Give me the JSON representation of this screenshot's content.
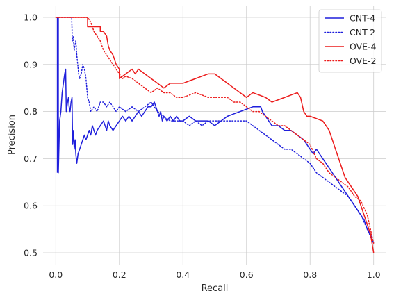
{
  "chart_data": {
    "type": "line",
    "title": "",
    "xlabel": "Recall",
    "ylabel": "Precision",
    "xlim": [
      -0.04,
      1.04
    ],
    "ylim": [
      0.475,
      1.025
    ],
    "xticks": [
      0.0,
      0.2,
      0.4,
      0.6,
      0.8,
      1.0
    ],
    "xtick_labels": [
      "0.0",
      "0.2",
      "0.4",
      "0.6",
      "0.8",
      "1.0"
    ],
    "yticks": [
      0.5,
      0.6,
      0.7,
      0.8,
      0.9,
      1.0
    ],
    "ytick_labels": [
      "0.5",
      "0.6",
      "0.7",
      "0.8",
      "0.9",
      "1.0"
    ],
    "grid": true,
    "legend_position": "top-right",
    "series": [
      {
        "name": "CNT-4",
        "color": "#1f1fdc",
        "style": "solid",
        "points": [
          [
            0.005,
            0.67
          ],
          [
            0.005,
            1.0
          ],
          [
            0.008,
            1.0
          ],
          [
            0.008,
            0.67
          ],
          [
            0.012,
            0.78
          ],
          [
            0.016,
            0.8
          ],
          [
            0.02,
            0.84
          ],
          [
            0.024,
            0.86
          ],
          [
            0.028,
            0.88
          ],
          [
            0.031,
            0.89
          ],
          [
            0.033,
            0.8
          ],
          [
            0.037,
            0.82
          ],
          [
            0.04,
            0.83
          ],
          [
            0.042,
            0.81
          ],
          [
            0.045,
            0.8
          ],
          [
            0.048,
            0.82
          ],
          [
            0.051,
            0.83
          ],
          [
            0.053,
            0.73
          ],
          [
            0.056,
            0.76
          ],
          [
            0.058,
            0.72
          ],
          [
            0.061,
            0.74
          ],
          [
            0.063,
            0.71
          ],
          [
            0.066,
            0.69
          ],
          [
            0.07,
            0.71
          ],
          [
            0.075,
            0.72
          ],
          [
            0.08,
            0.73
          ],
          [
            0.085,
            0.74
          ],
          [
            0.09,
            0.75
          ],
          [
            0.095,
            0.74
          ],
          [
            0.1,
            0.75
          ],
          [
            0.105,
            0.76
          ],
          [
            0.11,
            0.75
          ],
          [
            0.115,
            0.77
          ],
          [
            0.12,
            0.76
          ],
          [
            0.125,
            0.75
          ],
          [
            0.13,
            0.76
          ],
          [
            0.14,
            0.77
          ],
          [
            0.15,
            0.78
          ],
          [
            0.155,
            0.77
          ],
          [
            0.16,
            0.76
          ],
          [
            0.165,
            0.78
          ],
          [
            0.17,
            0.77
          ],
          [
            0.18,
            0.76
          ],
          [
            0.19,
            0.77
          ],
          [
            0.2,
            0.78
          ],
          [
            0.21,
            0.79
          ],
          [
            0.22,
            0.78
          ],
          [
            0.23,
            0.79
          ],
          [
            0.24,
            0.78
          ],
          [
            0.25,
            0.79
          ],
          [
            0.26,
            0.8
          ],
          [
            0.27,
            0.79
          ],
          [
            0.28,
            0.8
          ],
          [
            0.29,
            0.81
          ],
          [
            0.3,
            0.81
          ],
          [
            0.31,
            0.82
          ],
          [
            0.315,
            0.81
          ],
          [
            0.32,
            0.8
          ],
          [
            0.325,
            0.79
          ],
          [
            0.33,
            0.8
          ],
          [
            0.335,
            0.78
          ],
          [
            0.34,
            0.79
          ],
          [
            0.35,
            0.78
          ],
          [
            0.36,
            0.79
          ],
          [
            0.37,
            0.78
          ],
          [
            0.38,
            0.79
          ],
          [
            0.39,
            0.78
          ],
          [
            0.4,
            0.78
          ],
          [
            0.42,
            0.79
          ],
          [
            0.44,
            0.78
          ],
          [
            0.46,
            0.78
          ],
          [
            0.48,
            0.78
          ],
          [
            0.5,
            0.77
          ],
          [
            0.52,
            0.78
          ],
          [
            0.54,
            0.79
          ],
          [
            0.56,
            0.795
          ],
          [
            0.58,
            0.8
          ],
          [
            0.6,
            0.805
          ],
          [
            0.62,
            0.81
          ],
          [
            0.64,
            0.81
          ],
          [
            0.645,
            0.81
          ],
          [
            0.65,
            0.8
          ],
          [
            0.66,
            0.79
          ],
          [
            0.67,
            0.78
          ],
          [
            0.68,
            0.77
          ],
          [
            0.7,
            0.77
          ],
          [
            0.72,
            0.76
          ],
          [
            0.74,
            0.76
          ],
          [
            0.76,
            0.75
          ],
          [
            0.78,
            0.74
          ],
          [
            0.8,
            0.72
          ],
          [
            0.81,
            0.71
          ],
          [
            0.82,
            0.72
          ],
          [
            0.83,
            0.71
          ],
          [
            0.84,
            0.7
          ],
          [
            0.85,
            0.69
          ],
          [
            0.86,
            0.68
          ],
          [
            0.87,
            0.67
          ],
          [
            0.88,
            0.66
          ],
          [
            0.89,
            0.65
          ],
          [
            0.9,
            0.64
          ],
          [
            0.91,
            0.63
          ],
          [
            0.92,
            0.62
          ],
          [
            0.93,
            0.61
          ],
          [
            0.94,
            0.6
          ],
          [
            0.95,
            0.59
          ],
          [
            0.96,
            0.58
          ],
          [
            0.97,
            0.57
          ],
          [
            0.98,
            0.55
          ],
          [
            0.99,
            0.54
          ],
          [
            1.0,
            0.52
          ]
        ]
      },
      {
        "name": "CNT-2",
        "color": "#1f1fdc",
        "style": "dotted",
        "points": [
          [
            0.01,
            1.0
          ],
          [
            0.05,
            1.0
          ],
          [
            0.052,
            0.95
          ],
          [
            0.055,
            0.96
          ],
          [
            0.058,
            0.93
          ],
          [
            0.06,
            0.94
          ],
          [
            0.063,
            0.95
          ],
          [
            0.066,
            0.92
          ],
          [
            0.069,
            0.9
          ],
          [
            0.072,
            0.88
          ],
          [
            0.075,
            0.87
          ],
          [
            0.08,
            0.88
          ],
          [
            0.085,
            0.9
          ],
          [
            0.09,
            0.89
          ],
          [
            0.095,
            0.87
          ],
          [
            0.1,
            0.83
          ],
          [
            0.105,
            0.82
          ],
          [
            0.11,
            0.8
          ],
          [
            0.12,
            0.81
          ],
          [
            0.13,
            0.8
          ],
          [
            0.14,
            0.82
          ],
          [
            0.15,
            0.82
          ],
          [
            0.16,
            0.81
          ],
          [
            0.17,
            0.82
          ],
          [
            0.18,
            0.81
          ],
          [
            0.19,
            0.8
          ],
          [
            0.2,
            0.81
          ],
          [
            0.22,
            0.8
          ],
          [
            0.24,
            0.81
          ],
          [
            0.26,
            0.8
          ],
          [
            0.28,
            0.81
          ],
          [
            0.3,
            0.82
          ],
          [
            0.32,
            0.8
          ],
          [
            0.34,
            0.79
          ],
          [
            0.36,
            0.78
          ],
          [
            0.38,
            0.78
          ],
          [
            0.4,
            0.78
          ],
          [
            0.42,
            0.77
          ],
          [
            0.44,
            0.78
          ],
          [
            0.46,
            0.77
          ],
          [
            0.48,
            0.78
          ],
          [
            0.5,
            0.78
          ],
          [
            0.52,
            0.78
          ],
          [
            0.54,
            0.78
          ],
          [
            0.56,
            0.78
          ],
          [
            0.58,
            0.78
          ],
          [
            0.6,
            0.78
          ],
          [
            0.62,
            0.77
          ],
          [
            0.64,
            0.76
          ],
          [
            0.66,
            0.75
          ],
          [
            0.68,
            0.74
          ],
          [
            0.7,
            0.73
          ],
          [
            0.72,
            0.72
          ],
          [
            0.74,
            0.72
          ],
          [
            0.76,
            0.71
          ],
          [
            0.78,
            0.7
          ],
          [
            0.8,
            0.69
          ],
          [
            0.82,
            0.67
          ],
          [
            0.84,
            0.66
          ],
          [
            0.86,
            0.65
          ],
          [
            0.88,
            0.64
          ],
          [
            0.9,
            0.63
          ],
          [
            0.92,
            0.62
          ],
          [
            0.94,
            0.6
          ],
          [
            0.96,
            0.58
          ],
          [
            0.98,
            0.55
          ],
          [
            1.0,
            0.52
          ]
        ]
      },
      {
        "name": "OVE-4",
        "color": "#ec1c1c",
        "style": "solid",
        "points": [
          [
            0.0,
            1.0
          ],
          [
            0.1,
            1.0
          ],
          [
            0.1,
            0.98
          ],
          [
            0.14,
            0.98
          ],
          [
            0.14,
            0.97
          ],
          [
            0.15,
            0.97
          ],
          [
            0.16,
            0.96
          ],
          [
            0.165,
            0.94
          ],
          [
            0.17,
            0.93
          ],
          [
            0.18,
            0.92
          ],
          [
            0.19,
            0.9
          ],
          [
            0.2,
            0.89
          ],
          [
            0.2,
            0.87
          ],
          [
            0.22,
            0.88
          ],
          [
            0.24,
            0.89
          ],
          [
            0.25,
            0.88
          ],
          [
            0.26,
            0.89
          ],
          [
            0.28,
            0.88
          ],
          [
            0.3,
            0.87
          ],
          [
            0.32,
            0.86
          ],
          [
            0.34,
            0.85
          ],
          [
            0.36,
            0.86
          ],
          [
            0.38,
            0.86
          ],
          [
            0.4,
            0.86
          ],
          [
            0.42,
            0.865
          ],
          [
            0.44,
            0.87
          ],
          [
            0.46,
            0.875
          ],
          [
            0.48,
            0.88
          ],
          [
            0.5,
            0.88
          ],
          [
            0.52,
            0.87
          ],
          [
            0.54,
            0.86
          ],
          [
            0.56,
            0.85
          ],
          [
            0.58,
            0.84
          ],
          [
            0.6,
            0.83
          ],
          [
            0.62,
            0.84
          ],
          [
            0.64,
            0.835
          ],
          [
            0.66,
            0.83
          ],
          [
            0.68,
            0.82
          ],
          [
            0.7,
            0.825
          ],
          [
            0.72,
            0.83
          ],
          [
            0.74,
            0.835
          ],
          [
            0.76,
            0.84
          ],
          [
            0.77,
            0.83
          ],
          [
            0.78,
            0.8
          ],
          [
            0.79,
            0.79
          ],
          [
            0.8,
            0.79
          ],
          [
            0.82,
            0.785
          ],
          [
            0.84,
            0.78
          ],
          [
            0.85,
            0.77
          ],
          [
            0.86,
            0.76
          ],
          [
            0.87,
            0.74
          ],
          [
            0.88,
            0.72
          ],
          [
            0.89,
            0.7
          ],
          [
            0.9,
            0.68
          ],
          [
            0.91,
            0.66
          ],
          [
            0.92,
            0.65
          ],
          [
            0.93,
            0.64
          ],
          [
            0.94,
            0.63
          ],
          [
            0.95,
            0.62
          ],
          [
            0.96,
            0.6
          ],
          [
            0.97,
            0.58
          ],
          [
            0.98,
            0.56
          ],
          [
            0.99,
            0.54
          ],
          [
            1.0,
            0.5
          ]
        ]
      },
      {
        "name": "OVE-2",
        "color": "#ec1c1c",
        "style": "dotted",
        "points": [
          [
            0.0,
            1.0
          ],
          [
            0.1,
            1.0
          ],
          [
            0.11,
            0.99
          ],
          [
            0.12,
            0.97
          ],
          [
            0.13,
            0.96
          ],
          [
            0.14,
            0.95
          ],
          [
            0.15,
            0.93
          ],
          [
            0.16,
            0.92
          ],
          [
            0.17,
            0.91
          ],
          [
            0.18,
            0.9
          ],
          [
            0.19,
            0.89
          ],
          [
            0.2,
            0.88
          ],
          [
            0.21,
            0.87
          ],
          [
            0.22,
            0.875
          ],
          [
            0.24,
            0.87
          ],
          [
            0.26,
            0.86
          ],
          [
            0.28,
            0.85
          ],
          [
            0.3,
            0.84
          ],
          [
            0.32,
            0.85
          ],
          [
            0.34,
            0.84
          ],
          [
            0.36,
            0.84
          ],
          [
            0.38,
            0.83
          ],
          [
            0.4,
            0.83
          ],
          [
            0.42,
            0.835
          ],
          [
            0.44,
            0.84
          ],
          [
            0.46,
            0.835
          ],
          [
            0.48,
            0.83
          ],
          [
            0.5,
            0.83
          ],
          [
            0.52,
            0.83
          ],
          [
            0.54,
            0.83
          ],
          [
            0.56,
            0.82
          ],
          [
            0.58,
            0.82
          ],
          [
            0.6,
            0.81
          ],
          [
            0.62,
            0.8
          ],
          [
            0.64,
            0.8
          ],
          [
            0.66,
            0.79
          ],
          [
            0.68,
            0.78
          ],
          [
            0.7,
            0.77
          ],
          [
            0.72,
            0.77
          ],
          [
            0.74,
            0.76
          ],
          [
            0.76,
            0.75
          ],
          [
            0.78,
            0.74
          ],
          [
            0.8,
            0.73
          ],
          [
            0.82,
            0.7
          ],
          [
            0.84,
            0.69
          ],
          [
            0.86,
            0.67
          ],
          [
            0.88,
            0.66
          ],
          [
            0.9,
            0.65
          ],
          [
            0.92,
            0.64
          ],
          [
            0.94,
            0.62
          ],
          [
            0.96,
            0.61
          ],
          [
            0.98,
            0.58
          ],
          [
            1.0,
            0.52
          ]
        ]
      }
    ]
  }
}
